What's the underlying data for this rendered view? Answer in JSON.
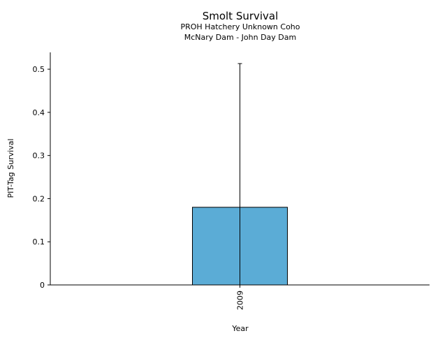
{
  "chart_data": {
    "type": "bar",
    "title": "Smolt Survival",
    "subtitle_lines": [
      "PROH Hatchery Unknown Coho",
      "McNary Dam - John Day Dam"
    ],
    "xlabel": "Year",
    "ylabel": "PIT-Tag Survival",
    "categories": [
      "2009"
    ],
    "values": [
      0.18
    ],
    "error_upper": [
      0.513
    ],
    "error_lower": [
      0.0
    ],
    "ylim": [
      0,
      0.539
    ],
    "yticks": [
      0,
      0.1,
      0.2,
      0.3,
      0.4,
      0.5
    ],
    "ytick_labels": [
      "0",
      "0.1",
      "0.2",
      "0.3",
      "0.4",
      "0.5"
    ],
    "bar_color": "#5bacd6",
    "grid": false,
    "legend": "none"
  }
}
